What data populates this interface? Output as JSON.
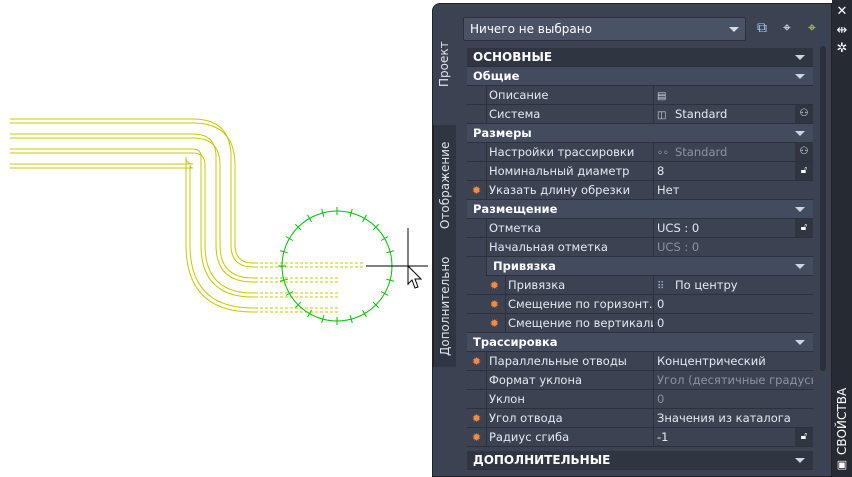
{
  "selection_dropdown": {
    "value": "Ничего не выбрано"
  },
  "toolbar": {
    "icons": [
      "add-selection-icon",
      "select-objects-icon",
      "quick-select-icon"
    ]
  },
  "side_tabs": [
    {
      "label": "Проект",
      "active": true
    },
    {
      "label": "Отображение",
      "active": false
    },
    {
      "label": "Дополнительно",
      "active": false
    }
  ],
  "palette_title": "СВОЙСТВА",
  "sections": {
    "main": "ОСНОВНЫЕ",
    "general": "Общие",
    "description": {
      "label": "Описание",
      "icon": "table-icon"
    },
    "system": {
      "label": "Система",
      "value": "Standard"
    },
    "sizes": "Размеры",
    "routing_pref": {
      "label": "Настройки трассировки",
      "value": "Standard"
    },
    "nominal": {
      "label": "Номинальный диаметр",
      "value": "8"
    },
    "cut_length": {
      "label": "Указать длину обрезки",
      "value": "Нет"
    },
    "placement": "Размещение",
    "elevation": {
      "label": "Отметка",
      "value": "UCS : 0"
    },
    "start_elev": {
      "label": "Начальная отметка",
      "value": "UCS : 0"
    },
    "justify_head": "Привязка",
    "justify": {
      "label": "Привязка",
      "value": "По центру"
    },
    "hoff": {
      "label": "Смещение  по  горизонт...",
      "value": "0"
    },
    "voff": {
      "label": "Смещение по вертикали",
      "value": "0"
    },
    "routing": "Трассировка",
    "parallel": {
      "label": "Параллельные отводы",
      "value": "Концентрический"
    },
    "slope_fmt": {
      "label": "Формат уклона",
      "value": "Угол (десятичные градусы)"
    },
    "slope": {
      "label": "Уклон",
      "value": "0"
    },
    "bend_angle": {
      "label": "Угол отвода",
      "value": "Значения из каталога"
    },
    "bend_radius": {
      "label": "Радиус сгиба",
      "value": "-1"
    },
    "extra": "ДОПОЛНИТЕЛЬНЫЕ"
  },
  "colors": {
    "pipe": "#c8c800",
    "circle": "#00c000",
    "panel": "#3b4353",
    "modified_marker": "#ff8a3d"
  }
}
